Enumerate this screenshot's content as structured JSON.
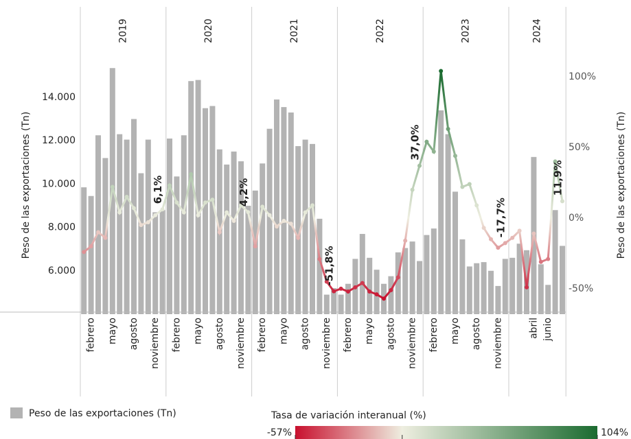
{
  "chart_data": {
    "type": "bar-line",
    "y_label": "Peso de las exportaciones (Tn)",
    "y2_label": "Peso de las exportaciones (Tn)",
    "years": [
      "2019",
      "2020",
      "2021",
      "2022",
      "2023",
      "2024"
    ],
    "categories": [
      null,
      "febrero",
      null,
      null,
      "mayo",
      null,
      null,
      "agosto",
      null,
      null,
      "noviembre",
      null,
      null,
      "febrero",
      null,
      null,
      "mayo",
      null,
      null,
      "agosto",
      null,
      null,
      "noviembre",
      null,
      null,
      "febrero",
      null,
      null,
      "mayo",
      null,
      null,
      "agosto",
      null,
      null,
      "noviembre",
      null,
      null,
      "febrero",
      null,
      null,
      "mayo",
      null,
      null,
      "agosto",
      null,
      null,
      "noviembre",
      null,
      null,
      "febrero",
      null,
      null,
      "mayo",
      null,
      null,
      "agosto",
      null,
      null,
      "noviembre",
      null,
      null,
      null,
      null,
      "abril",
      null,
      "junio",
      null,
      null
    ],
    "series": [
      {
        "name": "Peso de las exportaciones (Tn)",
        "kind": "bar",
        "color": "#b3b3b3",
        "values": [
          9850,
          9450,
          12250,
          11200,
          15350,
          12300,
          12050,
          13000,
          10500,
          12050,
          8700,
          8800,
          12100,
          10350,
          12250,
          14750,
          14800,
          13500,
          13600,
          11600,
          10900,
          11500,
          11050,
          9000,
          9700,
          10950,
          12550,
          13900,
          13550,
          13300,
          11750,
          12050,
          11850,
          8400,
          4900,
          5200,
          4900,
          5400,
          6550,
          7700,
          6600,
          6050,
          5400,
          5750,
          6850,
          7050,
          7350,
          6450,
          7650,
          7950,
          13400,
          12300,
          9650,
          7450,
          6200,
          6350,
          6400,
          6000,
          5300,
          6550,
          6600,
          7250,
          6950,
          11250,
          6300,
          5350,
          8800,
          7150
        ]
      },
      {
        "name": "Tasa de variación interanual (%)",
        "kind": "line",
        "axis": "y2",
        "values": [
          -24,
          -20,
          -10,
          -14,
          22,
          4,
          15,
          7,
          -5,
          -3,
          2,
          6.1,
          23,
          11,
          4,
          31,
          2,
          11,
          13,
          -10,
          4,
          -2,
          9,
          4.2,
          -20,
          8,
          2,
          -6,
          -2,
          -4,
          -14,
          4,
          9,
          -29,
          -45,
          -51.8,
          -50,
          -52,
          -49,
          -46,
          -52,
          -54,
          -57,
          -51,
          -42,
          -16,
          20,
          37.0,
          54,
          47,
          104,
          63,
          44,
          22,
          24,
          9,
          -7,
          -15,
          -21,
          -17.7,
          -14,
          -9,
          -49,
          -11,
          -31,
          -29,
          40,
          11.9
        ],
        "value_labels": [
          null,
          null,
          null,
          null,
          null,
          null,
          null,
          null,
          null,
          null,
          null,
          "6,1%",
          null,
          null,
          null,
          null,
          null,
          null,
          null,
          null,
          null,
          null,
          null,
          "4,2%",
          null,
          null,
          null,
          null,
          null,
          null,
          null,
          null,
          null,
          null,
          null,
          "-51,8%",
          null,
          null,
          null,
          null,
          null,
          null,
          null,
          null,
          null,
          null,
          null,
          "37,0%",
          null,
          null,
          null,
          null,
          null,
          null,
          null,
          null,
          null,
          null,
          null,
          "-17,7%",
          null,
          null,
          null,
          null,
          null,
          null,
          null,
          "11,9%"
        ]
      }
    ],
    "ylim": [
      4000,
      15800
    ],
    "yticks": [
      {
        "value": 6000,
        "label": "6.000"
      },
      {
        "value": 8000,
        "label": "8.000"
      },
      {
        "value": 10000,
        "label": "10.000"
      },
      {
        "value": 12000,
        "label": "12.000"
      },
      {
        "value": 14000,
        "label": "14.000"
      }
    ],
    "y2lim": [
      -68,
      113
    ],
    "y2ticks": [
      {
        "value": -50,
        "label": "-50%"
      },
      {
        "value": 0,
        "label": "0%"
      },
      {
        "value": 50,
        "label": "50%"
      },
      {
        "value": 100,
        "label": "100%"
      }
    ],
    "color_scale": {
      "title": "Tasa de variación interanual (%)",
      "stops": [
        {
          "value": -57,
          "label": "-57%",
          "color": "#c8102e"
        },
        {
          "value": 0,
          "color": "#eeeee0"
        },
        {
          "value": 104,
          "label": "104%",
          "color": "#1b6b30"
        }
      ]
    }
  }
}
